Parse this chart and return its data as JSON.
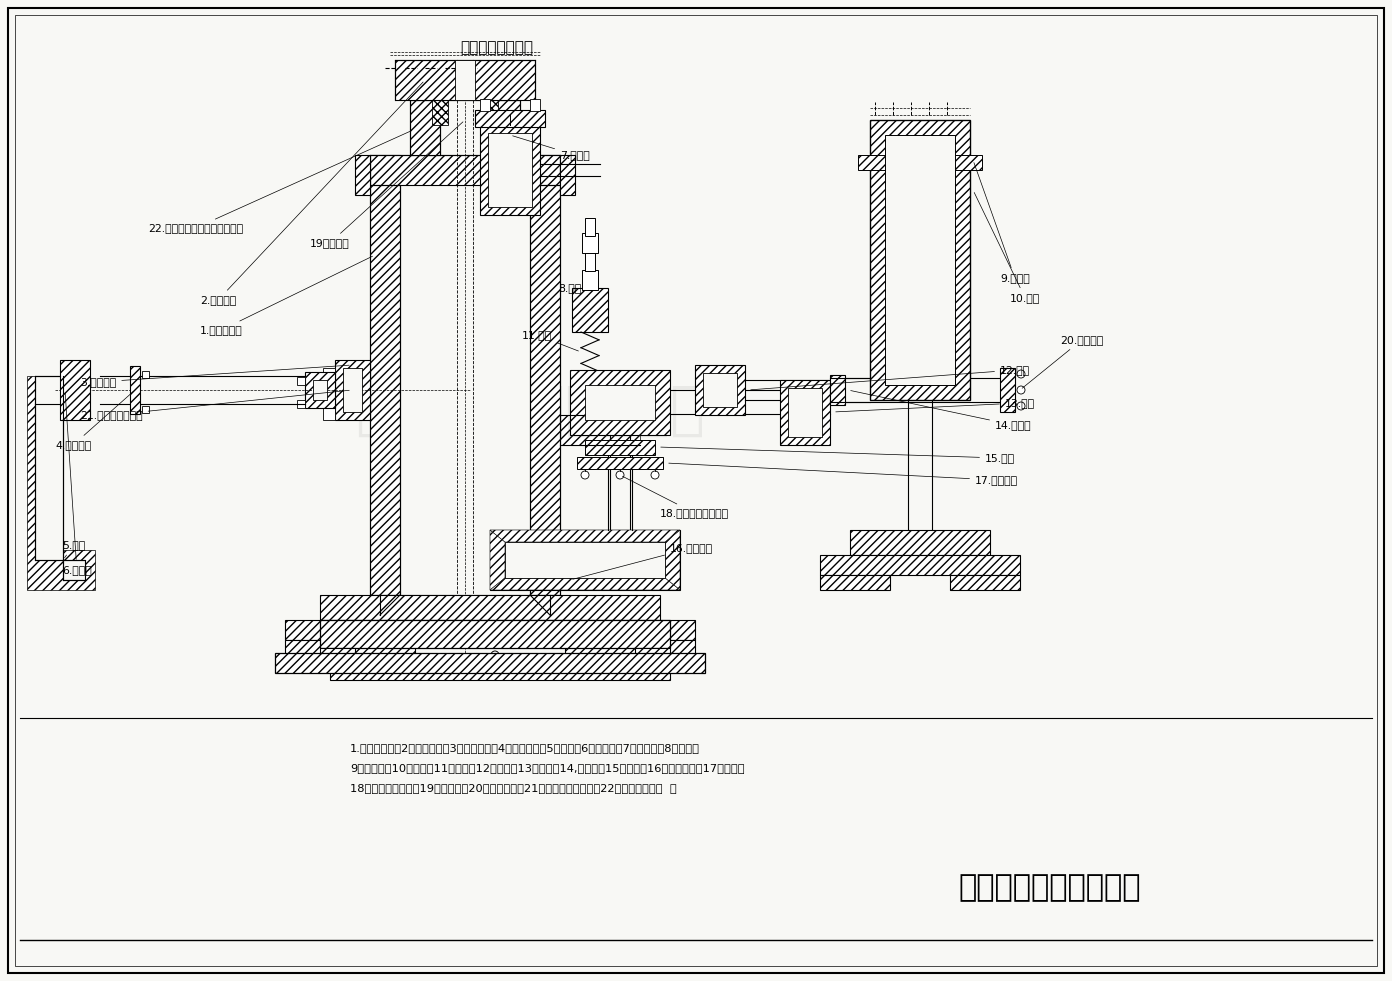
{
  "title": "不銹鋼泵件示意圖",
  "company": "咸陽華星泵業有限公司",
  "bg_color": "#f8f8f5",
  "watermark": "咸陽華星泵業有限公司",
  "parts_line1": "1.泵體工作腔：2，芯棒法蘭：3，進口閥箱：4，進口法蘭：5，彎管：6，方法蘭：7，空氣罐：8，閥蓋：",
  "parts_line2": "9，導向杆；10，閥芯：11，彈簧：12，三通：13，彎管：14,方法蘭：15，閥座：16，出口閥箱：17閥芯壓板",
  "parts_line3": "18，閥芯壓板螺絲：19，填料箱：20，出漿法蘭：21，耐酸堿橡膠閥片：22耐酸堿填料密封  ："
}
